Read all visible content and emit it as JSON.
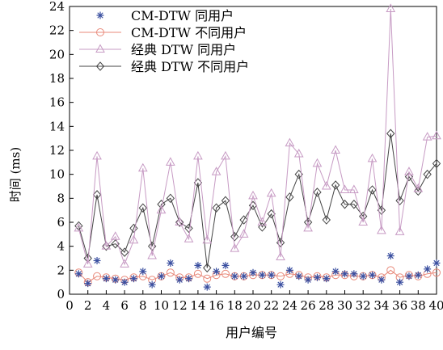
{
  "chart_data": {
    "type": "line",
    "title": "",
    "xlabel": "用户编号",
    "ylabel": "时间 (ms)",
    "xlim": [
      0,
      40
    ],
    "ylim": [
      0,
      24
    ],
    "xticks": [
      0,
      2,
      4,
      6,
      8,
      10,
      12,
      14,
      16,
      18,
      20,
      22,
      24,
      26,
      28,
      30,
      32,
      34,
      36,
      38,
      40
    ],
    "yticks": [
      0,
      2,
      4,
      6,
      8,
      10,
      12,
      14,
      16,
      18,
      20,
      22,
      24
    ],
    "grid": false,
    "legend_position": "top-left",
    "x": [
      1,
      2,
      3,
      4,
      5,
      6,
      7,
      8,
      9,
      10,
      11,
      12,
      13,
      14,
      15,
      16,
      17,
      18,
      19,
      20,
      21,
      22,
      23,
      24,
      25,
      26,
      27,
      28,
      29,
      30,
      31,
      32,
      33,
      34,
      35,
      36,
      37,
      38,
      39,
      40
    ],
    "series": [
      {
        "name": "CM-DTW 同用户",
        "marker": "star",
        "color": "#3a4fa0",
        "values": [
          1.7,
          0.9,
          2.8,
          1.3,
          1.2,
          1.0,
          1.3,
          1.9,
          0.8,
          1.5,
          2.6,
          1.2,
          1.3,
          2.4,
          0.6,
          1.9,
          2.4,
          1.5,
          1.5,
          1.8,
          1.6,
          1.6,
          0.8,
          2.0,
          1.5,
          1.2,
          1.4,
          1.3,
          1.9,
          1.7,
          1.7,
          1.5,
          1.6,
          1.2,
          3.2,
          1.0,
          1.5,
          1.6,
          2.1,
          2.6
        ]
      },
      {
        "name": "CM-DTW 不同用户",
        "marker": "circle",
        "color": "#e8897a",
        "values": [
          1.8,
          1.0,
          1.5,
          1.4,
          1.3,
          1.2,
          1.4,
          1.5,
          1.2,
          1.5,
          1.8,
          1.4,
          1.4,
          1.7,
          1.3,
          1.6,
          1.7,
          1.5,
          1.5,
          1.6,
          1.6,
          1.6,
          1.5,
          1.7,
          1.6,
          1.4,
          1.5,
          1.4,
          1.6,
          1.6,
          1.5,
          1.5,
          1.6,
          1.4,
          2.0,
          1.4,
          1.6,
          1.5,
          1.7,
          1.8
        ]
      },
      {
        "name": "经典 DTW 同用户",
        "marker": "triangle",
        "color": "#c79bc4",
        "values": [
          5.5,
          2.5,
          11.5,
          4.0,
          4.8,
          2.5,
          4.5,
          10.5,
          3.2,
          7.0,
          11.0,
          6.0,
          4.6,
          11.5,
          4.5,
          10.2,
          11.5,
          3.8,
          5.0,
          8.2,
          6.0,
          8.4,
          3.1,
          12.6,
          11.7,
          5.5,
          10.9,
          9.0,
          12.0,
          8.7,
          8.7,
          6.0,
          11.3,
          5.3,
          23.8,
          5.2,
          10.2,
          8.8,
          13.1,
          13.2
        ]
      },
      {
        "name": "经典 DTW 不同用户",
        "marker": "diamond",
        "color": "#444444",
        "values": [
          5.7,
          3.0,
          8.3,
          4.0,
          4.2,
          3.5,
          5.5,
          7.2,
          4.0,
          7.5,
          8.0,
          6.0,
          5.5,
          9.3,
          2.2,
          7.2,
          7.8,
          4.8,
          6.2,
          7.4,
          5.6,
          6.7,
          4.3,
          8.1,
          10.0,
          6.0,
          8.5,
          6.2,
          9.1,
          7.5,
          7.5,
          6.5,
          8.7,
          7.0,
          13.4,
          7.8,
          9.8,
          8.6,
          10.0,
          10.9
        ]
      }
    ]
  }
}
